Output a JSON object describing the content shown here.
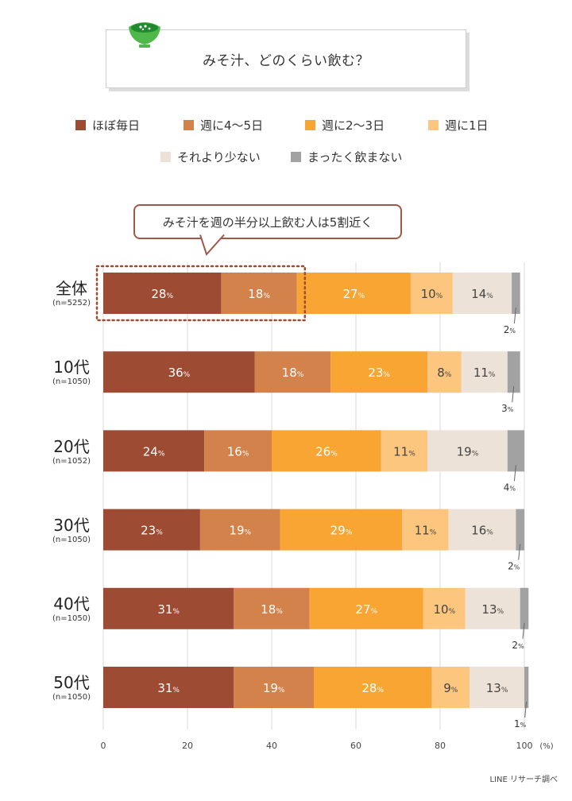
{
  "title": "みそ汁、どのくらい飲む？",
  "legend": [
    {
      "label": "ほぼ毎日",
      "color": "#9e4b34"
    },
    {
      "label": "週に4～5日",
      "color": "#d4824b"
    },
    {
      "label": "週に2～3日",
      "color": "#f9a533"
    },
    {
      "label": "週に1日",
      "color": "#fcc67f"
    },
    {
      "label": "それより少ない",
      "color": "#ede2d7"
    },
    {
      "label": "まったく飲まない",
      "color": "#a2a2a2"
    }
  ],
  "callout": "みそ汁を週の半分以上飲む人は5割近く",
  "source": "LINE リサーチ調べ",
  "chart_data": {
    "type": "bar",
    "orientation": "horizontal",
    "stacked": true,
    "categories": [
      {
        "name": "全体",
        "n": "(n=5252)"
      },
      {
        "name": "10代",
        "n": "(n=1050)"
      },
      {
        "name": "20代",
        "n": "(n=1052)"
      },
      {
        "name": "30代",
        "n": "(n=1050)"
      },
      {
        "name": "40代",
        "n": "(n=1050)"
      },
      {
        "name": "50代",
        "n": "(n=1050)"
      }
    ],
    "series": [
      {
        "name": "ほぼ毎日",
        "values": [
          28,
          36,
          24,
          23,
          31,
          31
        ]
      },
      {
        "name": "週に4～5日",
        "values": [
          18,
          18,
          16,
          19,
          18,
          19
        ]
      },
      {
        "name": "週に2～3日",
        "values": [
          27,
          23,
          26,
          29,
          27,
          28
        ]
      },
      {
        "name": "週に1日",
        "values": [
          10,
          8,
          11,
          11,
          10,
          9
        ]
      },
      {
        "name": "それより少ない",
        "values": [
          14,
          11,
          19,
          16,
          13,
          13
        ]
      },
      {
        "name": "まったく飲まない",
        "values": [
          2,
          3,
          4,
          2,
          2,
          1
        ]
      }
    ],
    "bar_label_suffix": "%",
    "xlim": [
      0,
      100
    ],
    "x_ticks": [
      0,
      20,
      40,
      60,
      80,
      100
    ],
    "x_unit": "(%)",
    "grid": true,
    "legend_position": "top"
  }
}
